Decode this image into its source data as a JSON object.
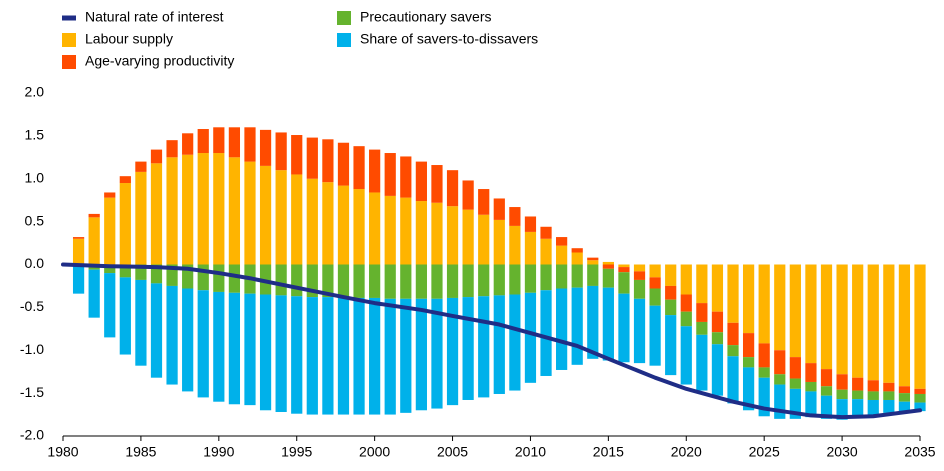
{
  "chart_data": {
    "type": "bar",
    "stacked": true,
    "x": [
      1981,
      1982,
      1983,
      1984,
      1985,
      1986,
      1987,
      1988,
      1989,
      1990,
      1991,
      1992,
      1993,
      1994,
      1995,
      1996,
      1997,
      1998,
      1999,
      2000,
      2001,
      2002,
      2003,
      2004,
      2005,
      2006,
      2007,
      2008,
      2009,
      2010,
      2011,
      2012,
      2013,
      2014,
      2015,
      2016,
      2017,
      2018,
      2019,
      2020,
      2021,
      2022,
      2023,
      2024,
      2025,
      2026,
      2027,
      2028,
      2029,
      2030,
      2031,
      2032,
      2033,
      2034,
      2035
    ],
    "series": [
      {
        "name": "Labour supply",
        "color": "#ffb400",
        "values": [
          0.3,
          0.55,
          0.78,
          0.95,
          1.08,
          1.18,
          1.25,
          1.28,
          1.3,
          1.3,
          1.25,
          1.2,
          1.15,
          1.1,
          1.05,
          1.0,
          0.96,
          0.92,
          0.88,
          0.84,
          0.8,
          0.78,
          0.74,
          0.72,
          0.68,
          0.64,
          0.58,
          0.52,
          0.45,
          0.38,
          0.3,
          0.22,
          0.14,
          0.05,
          0.03,
          -0.03,
          -0.08,
          -0.15,
          -0.25,
          -0.35,
          -0.45,
          -0.55,
          -0.68,
          -0.8,
          -0.92,
          -1.0,
          -1.08,
          -1.15,
          -1.22,
          -1.28,
          -1.32,
          -1.35,
          -1.38,
          -1.42,
          -1.45
        ]
      },
      {
        "name": "Age-varying productivity",
        "color": "#ff4b00",
        "values": [
          0.02,
          0.04,
          0.06,
          0.08,
          0.12,
          0.16,
          0.2,
          0.25,
          0.28,
          0.3,
          0.35,
          0.4,
          0.42,
          0.44,
          0.46,
          0.48,
          0.5,
          0.5,
          0.5,
          0.5,
          0.5,
          0.48,
          0.46,
          0.44,
          0.42,
          0.34,
          0.3,
          0.25,
          0.22,
          0.18,
          0.14,
          0.1,
          0.05,
          0.03,
          -0.05,
          -0.06,
          -0.1,
          -0.13,
          -0.16,
          -0.2,
          -0.22,
          -0.24,
          -0.26,
          -0.28,
          -0.28,
          -0.28,
          -0.25,
          -0.22,
          -0.2,
          -0.18,
          -0.15,
          -0.13,
          -0.1,
          -0.08,
          -0.06
        ]
      },
      {
        "name": "Precautionary savers",
        "color": "#65b32e",
        "values": [
          -0.02,
          -0.06,
          -0.1,
          -0.15,
          -0.18,
          -0.22,
          -0.25,
          -0.28,
          -0.3,
          -0.32,
          -0.33,
          -0.34,
          -0.35,
          -0.36,
          -0.37,
          -0.38,
          -0.38,
          -0.38,
          -0.39,
          -0.39,
          -0.4,
          -0.4,
          -0.4,
          -0.4,
          -0.39,
          -0.38,
          -0.37,
          -0.36,
          -0.35,
          -0.33,
          -0.3,
          -0.28,
          -0.27,
          -0.25,
          -0.22,
          -0.25,
          -0.22,
          -0.2,
          -0.18,
          -0.17,
          -0.15,
          -0.14,
          -0.13,
          -0.12,
          -0.12,
          -0.12,
          -0.12,
          -0.11,
          -0.11,
          -0.11,
          -0.1,
          -0.1,
          -0.1,
          -0.1,
          -0.1
        ]
      },
      {
        "name": "Share of savers-to-dissavers",
        "color": "#00b1ea",
        "values": [
          -0.32,
          -0.56,
          -0.75,
          -0.9,
          -1.0,
          -1.1,
          -1.15,
          -1.2,
          -1.25,
          -1.28,
          -1.3,
          -1.3,
          -1.35,
          -1.36,
          -1.37,
          -1.37,
          -1.37,
          -1.37,
          -1.36,
          -1.36,
          -1.35,
          -1.33,
          -1.3,
          -1.28,
          -1.25,
          -1.2,
          -1.18,
          -1.15,
          -1.12,
          -1.05,
          -1.0,
          -0.95,
          -0.9,
          -0.85,
          -0.85,
          -0.8,
          -0.75,
          -0.7,
          -0.7,
          -0.68,
          -0.65,
          -0.6,
          -0.55,
          -0.5,
          -0.45,
          -0.4,
          -0.35,
          -0.3,
          -0.27,
          -0.24,
          -0.2,
          -0.18,
          -0.15,
          -0.12,
          -0.1
        ]
      },
      {
        "name": "Natural rate of interest",
        "color": "#1f2d86",
        "type": "line",
        "x": [
          1980,
          1983,
          1986,
          1988,
          1990,
          1992,
          1995,
          1998,
          2000,
          2003,
          2005,
          2008,
          2010,
          2013,
          2015,
          2018,
          2020,
          2023,
          2025,
          2028,
          2030,
          2032,
          2035
        ],
        "values": [
          0,
          -0.02,
          -0.03,
          -0.05,
          -0.1,
          -0.16,
          -0.27,
          -0.38,
          -0.45,
          -0.53,
          -0.6,
          -0.7,
          -0.8,
          -0.95,
          -1.1,
          -1.32,
          -1.45,
          -1.6,
          -1.68,
          -1.76,
          -1.78,
          -1.77,
          -1.7
        ]
      }
    ],
    "xlim": [
      1980,
      2035
    ],
    "xticks": [
      1980,
      1985,
      1990,
      1995,
      2000,
      2005,
      2010,
      2015,
      2020,
      2025,
      2030,
      2035
    ],
    "ylim": [
      -2,
      2
    ],
    "yticks": [
      {
        "value": -2,
        "label": "-2.0"
      },
      {
        "value": -1.5,
        "label": "-1.5"
      },
      {
        "value": -1,
        "label": "-1.0"
      },
      {
        "value": -0.5,
        "label": "-0.5"
      },
      {
        "value": 0,
        "label": "0.0"
      },
      {
        "value": 0.5,
        "label": "0.5"
      },
      {
        "value": 1,
        "label": "1.0"
      },
      {
        "value": 1.5,
        "label": "1.5"
      },
      {
        "value": 2,
        "label": "2.0"
      }
    ],
    "grid": false
  }
}
